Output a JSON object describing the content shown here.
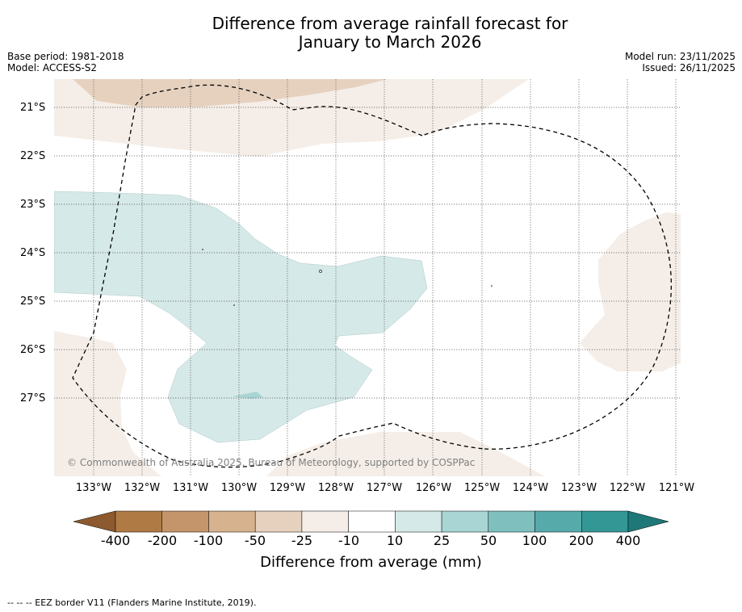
{
  "title": {
    "line1": "Difference from average rainfall forecast for",
    "line2": "January to March 2026"
  },
  "meta": {
    "base_period": "Base period: 1981-2018",
    "model": "Model: ACCESS-S2",
    "model_run": "Model run: 23/11/2025",
    "issued": "Issued: 26/11/2025"
  },
  "map": {
    "latitude_labels": [
      "21°S",
      "22°S",
      "23°S",
      "24°S",
      "25°S",
      "26°S",
      "27°S"
    ],
    "longitude_labels": [
      "133°W",
      "132°W",
      "131°W",
      "130°W",
      "129°W",
      "128°W",
      "127°W",
      "126°W",
      "125°W",
      "124°W",
      "123°W",
      "122°W",
      "121°W"
    ],
    "copyright": "© Commonwealth of Australia 2025, Bureau of Meteorology, supported by COSPPac"
  },
  "colorbar": {
    "title": "Difference from average (mm)",
    "ticks": [
      "-400",
      "-200",
      "-100",
      "-50",
      "-25",
      "-10",
      "10",
      "25",
      "50",
      "100",
      "200",
      "400"
    ],
    "colors": [
      "#8c5a2e",
      "#b07a44",
      "#c4956a",
      "#d6b28e",
      "#e6d1bf",
      "#f5eee8",
      "#ffffff",
      "#d5e9e8",
      "#a9d5d4",
      "#7fc0bf",
      "#57aaaa",
      "#339796",
      "#1f7878"
    ]
  },
  "footnote": "--  --  -- EEZ border V11 (Flanders Marine Institute, 2019)."
}
